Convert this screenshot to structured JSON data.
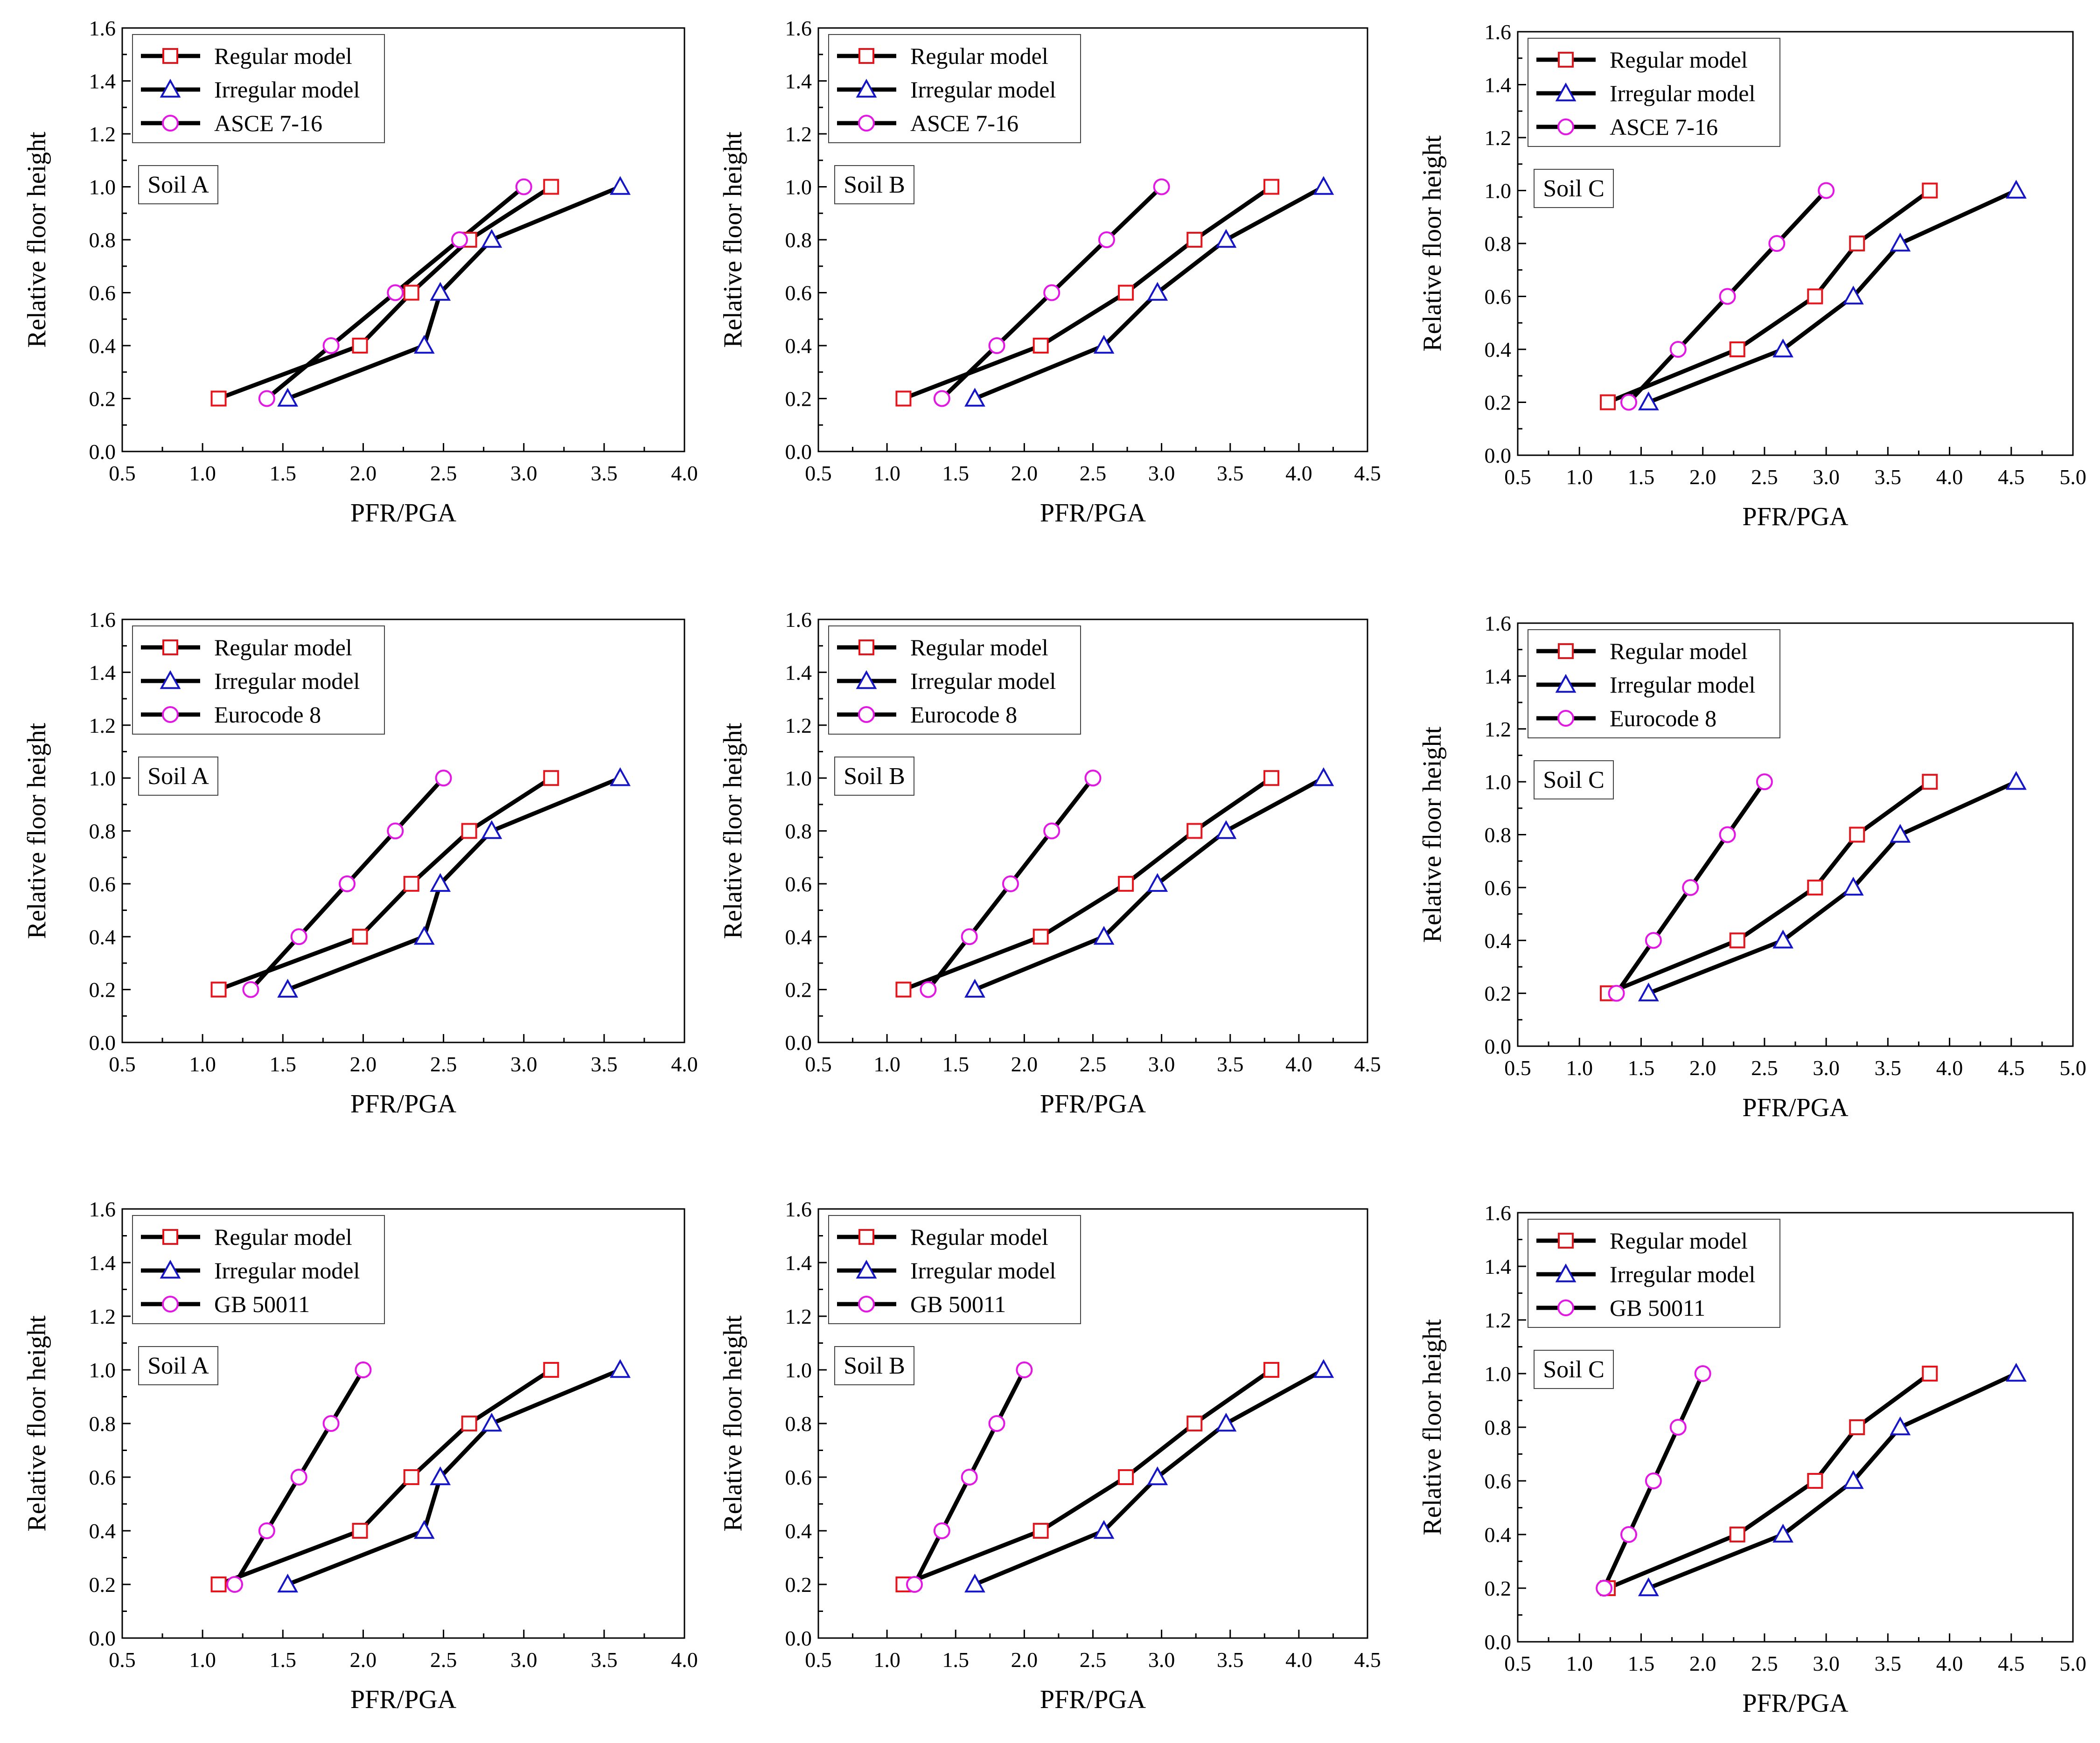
{
  "figure": {
    "series_names": [
      "Regular model",
      "Irregular model"
    ],
    "colors": {
      "regular": "#e8141c",
      "irregular": "#1414c8",
      "code": "#e614e6",
      "line": "#000000"
    },
    "marker_icons": {
      "regular": "square-marker",
      "irregular": "triangle-marker",
      "code": "circle-marker"
    }
  },
  "chart_data": [
    {
      "type": "line",
      "row": 1,
      "col": 1,
      "code": "ASCE 7-16",
      "soil": "Soil A",
      "xlabel": "PFR/PGA",
      "ylabel": "Relative floor height",
      "xlim": [
        0.5,
        4.0
      ],
      "ylim": [
        0.0,
        1.6
      ],
      "xticks": [
        "0.5",
        "1.0",
        "1.5",
        "2.0",
        "2.5",
        "3.0",
        "3.5",
        "4.0"
      ],
      "yticks": [
        "0.0",
        "0.2",
        "0.4",
        "0.6",
        "0.8",
        "1.0",
        "1.2",
        "1.4",
        "1.6"
      ],
      "series": [
        {
          "name": "Regular model",
          "x": [
            1.1,
            1.98,
            2.3,
            2.66,
            3.17
          ],
          "y": [
            0.2,
            0.4,
            0.6,
            0.8,
            1.0
          ]
        },
        {
          "name": "Irregular model",
          "x": [
            1.53,
            2.38,
            2.48,
            2.8,
            3.6
          ],
          "y": [
            0.2,
            0.4,
            0.6,
            0.8,
            1.0
          ]
        },
        {
          "name": "ASCE 7-16",
          "x": [
            1.4,
            1.8,
            2.2,
            2.6,
            3.0
          ],
          "y": [
            0.2,
            0.4,
            0.6,
            0.8,
            1.0
          ]
        }
      ]
    },
    {
      "type": "line",
      "row": 1,
      "col": 2,
      "code": "ASCE 7-16",
      "soil": "Soil B",
      "xlabel": "PFR/PGA",
      "ylabel": "Relative floor height",
      "xlim": [
        0.5,
        4.5
      ],
      "ylim": [
        0.0,
        1.6
      ],
      "xticks": [
        "0.5",
        "1.0",
        "1.5",
        "2.0",
        "2.5",
        "3.0",
        "3.5",
        "4.0",
        "4.5"
      ],
      "yticks": [
        "0.0",
        "0.2",
        "0.4",
        "0.6",
        "0.8",
        "1.0",
        "1.2",
        "1.4",
        "1.6"
      ],
      "series": [
        {
          "name": "Regular model",
          "x": [
            1.12,
            2.12,
            2.74,
            3.24,
            3.8
          ],
          "y": [
            0.2,
            0.4,
            0.6,
            0.8,
            1.0
          ]
        },
        {
          "name": "Irregular model",
          "x": [
            1.64,
            2.58,
            2.97,
            3.47,
            4.18
          ],
          "y": [
            0.2,
            0.4,
            0.6,
            0.8,
            1.0
          ]
        },
        {
          "name": "ASCE 7-16",
          "x": [
            1.4,
            1.8,
            2.2,
            2.6,
            3.0
          ],
          "y": [
            0.2,
            0.4,
            0.6,
            0.8,
            1.0
          ]
        }
      ]
    },
    {
      "type": "line",
      "row": 1,
      "col": 3,
      "code": "ASCE 7-16",
      "soil": "Soil C",
      "xlabel": "PFR/PGA",
      "ylabel": "Relative floor height",
      "xlim": [
        0.5,
        5.0
      ],
      "ylim": [
        0.0,
        1.6
      ],
      "xticks": [
        "0.5",
        "1.0",
        "1.5",
        "2.0",
        "2.5",
        "3.0",
        "3.5",
        "4.0",
        "4.5",
        "5.0"
      ],
      "yticks": [
        "0.0",
        "0.2",
        "0.4",
        "0.6",
        "0.8",
        "1.0",
        "1.2",
        "1.4",
        "1.6"
      ],
      "series": [
        {
          "name": "Regular model",
          "x": [
            1.23,
            2.28,
            2.91,
            3.25,
            3.84
          ],
          "y": [
            0.2,
            0.4,
            0.6,
            0.8,
            1.0
          ]
        },
        {
          "name": "Irregular model",
          "x": [
            1.56,
            2.65,
            3.22,
            3.6,
            4.54
          ],
          "y": [
            0.2,
            0.4,
            0.6,
            0.8,
            1.0
          ]
        },
        {
          "name": "ASCE 7-16",
          "x": [
            1.4,
            1.8,
            2.2,
            2.6,
            3.0
          ],
          "y": [
            0.2,
            0.4,
            0.6,
            0.8,
            1.0
          ]
        }
      ]
    },
    {
      "type": "line",
      "row": 2,
      "col": 1,
      "code": "Eurocode 8",
      "soil": "Soil A",
      "xlabel": "PFR/PGA",
      "ylabel": "Relative floor height",
      "xlim": [
        0.5,
        4.0
      ],
      "ylim": [
        0.0,
        1.6
      ],
      "xticks": [
        "0.5",
        "1.0",
        "1.5",
        "2.0",
        "2.5",
        "3.0",
        "3.5",
        "4.0"
      ],
      "yticks": [
        "0.0",
        "0.2",
        "0.4",
        "0.6",
        "0.8",
        "1.0",
        "1.2",
        "1.4",
        "1.6"
      ],
      "series": [
        {
          "name": "Regular model",
          "x": [
            1.1,
            1.98,
            2.3,
            2.66,
            3.17
          ],
          "y": [
            0.2,
            0.4,
            0.6,
            0.8,
            1.0
          ]
        },
        {
          "name": "Irregular model",
          "x": [
            1.53,
            2.38,
            2.48,
            2.8,
            3.6
          ],
          "y": [
            0.2,
            0.4,
            0.6,
            0.8,
            1.0
          ]
        },
        {
          "name": "Eurocode 8",
          "x": [
            1.3,
            1.6,
            1.9,
            2.2,
            2.5
          ],
          "y": [
            0.2,
            0.4,
            0.6,
            0.8,
            1.0
          ]
        }
      ]
    },
    {
      "type": "line",
      "row": 2,
      "col": 2,
      "code": "Eurocode 8",
      "soil": "Soil B",
      "xlabel": "PFR/PGA",
      "ylabel": "Relative floor height",
      "xlim": [
        0.5,
        4.5
      ],
      "ylim": [
        0.0,
        1.6
      ],
      "xticks": [
        "0.5",
        "1.0",
        "1.5",
        "2.0",
        "2.5",
        "3.0",
        "3.5",
        "4.0",
        "4.5"
      ],
      "yticks": [
        "0.0",
        "0.2",
        "0.4",
        "0.6",
        "0.8",
        "1.0",
        "1.2",
        "1.4",
        "1.6"
      ],
      "series": [
        {
          "name": "Regular model",
          "x": [
            1.12,
            2.12,
            2.74,
            3.24,
            3.8
          ],
          "y": [
            0.2,
            0.4,
            0.6,
            0.8,
            1.0
          ]
        },
        {
          "name": "Irregular model",
          "x": [
            1.64,
            2.58,
            2.97,
            3.47,
            4.18
          ],
          "y": [
            0.2,
            0.4,
            0.6,
            0.8,
            1.0
          ]
        },
        {
          "name": "Eurocode 8",
          "x": [
            1.3,
            1.6,
            1.9,
            2.2,
            2.5
          ],
          "y": [
            0.2,
            0.4,
            0.6,
            0.8,
            1.0
          ]
        }
      ]
    },
    {
      "type": "line",
      "row": 2,
      "col": 3,
      "code": "Eurocode 8",
      "soil": "Soil C",
      "xlabel": "PFR/PGA",
      "ylabel": "Relative floor height",
      "xlim": [
        0.5,
        5.0
      ],
      "ylim": [
        0.0,
        1.6
      ],
      "xticks": [
        "0.5",
        "1.0",
        "1.5",
        "2.0",
        "2.5",
        "3.0",
        "3.5",
        "4.0",
        "4.5",
        "5.0"
      ],
      "yticks": [
        "0.0",
        "0.2",
        "0.4",
        "0.6",
        "0.8",
        "1.0",
        "1.2",
        "1.4",
        "1.6"
      ],
      "series": [
        {
          "name": "Regular model",
          "x": [
            1.23,
            2.28,
            2.91,
            3.25,
            3.84
          ],
          "y": [
            0.2,
            0.4,
            0.6,
            0.8,
            1.0
          ]
        },
        {
          "name": "Irregular model",
          "x": [
            1.56,
            2.65,
            3.22,
            3.6,
            4.54
          ],
          "y": [
            0.2,
            0.4,
            0.6,
            0.8,
            1.0
          ]
        },
        {
          "name": "Eurocode 8",
          "x": [
            1.3,
            1.6,
            1.9,
            2.2,
            2.5
          ],
          "y": [
            0.2,
            0.4,
            0.6,
            0.8,
            1.0
          ]
        }
      ]
    },
    {
      "type": "line",
      "row": 3,
      "col": 1,
      "code": "GB 50011",
      "soil": "Soil A",
      "xlabel": "PFR/PGA",
      "ylabel": "Relative floor height",
      "xlim": [
        0.5,
        4.0
      ],
      "ylim": [
        0.0,
        1.6
      ],
      "xticks": [
        "0.5",
        "1.0",
        "1.5",
        "2.0",
        "2.5",
        "3.0",
        "3.5",
        "4.0"
      ],
      "yticks": [
        "0.0",
        "0.2",
        "0.4",
        "0.6",
        "0.8",
        "1.0",
        "1.2",
        "1.4",
        "1.6"
      ],
      "series": [
        {
          "name": "Regular model",
          "x": [
            1.1,
            1.98,
            2.3,
            2.66,
            3.17
          ],
          "y": [
            0.2,
            0.4,
            0.6,
            0.8,
            1.0
          ]
        },
        {
          "name": "Irregular model",
          "x": [
            1.53,
            2.38,
            2.48,
            2.8,
            3.6
          ],
          "y": [
            0.2,
            0.4,
            0.6,
            0.8,
            1.0
          ]
        },
        {
          "name": "GB 50011",
          "x": [
            1.2,
            1.4,
            1.6,
            1.8,
            2.0
          ],
          "y": [
            0.2,
            0.4,
            0.6,
            0.8,
            1.0
          ]
        }
      ]
    },
    {
      "type": "line",
      "row": 3,
      "col": 2,
      "code": "GB 50011",
      "soil": "Soil B",
      "xlabel": "PFR/PGA",
      "ylabel": "Relative floor height",
      "xlim": [
        0.5,
        4.5
      ],
      "ylim": [
        0.0,
        1.6
      ],
      "xticks": [
        "0.5",
        "1.0",
        "1.5",
        "2.0",
        "2.5",
        "3.0",
        "3.5",
        "4.0",
        "4.5"
      ],
      "yticks": [
        "0.0",
        "0.2",
        "0.4",
        "0.6",
        "0.8",
        "1.0",
        "1.2",
        "1.4",
        "1.6"
      ],
      "series": [
        {
          "name": "Regular model",
          "x": [
            1.12,
            2.12,
            2.74,
            3.24,
            3.8
          ],
          "y": [
            0.2,
            0.4,
            0.6,
            0.8,
            1.0
          ]
        },
        {
          "name": "Irregular model",
          "x": [
            1.64,
            2.58,
            2.97,
            3.47,
            4.18
          ],
          "y": [
            0.2,
            0.4,
            0.6,
            0.8,
            1.0
          ]
        },
        {
          "name": "GB 50011",
          "x": [
            1.2,
            1.4,
            1.6,
            1.8,
            2.0
          ],
          "y": [
            0.2,
            0.4,
            0.6,
            0.8,
            1.0
          ]
        }
      ]
    },
    {
      "type": "line",
      "row": 3,
      "col": 3,
      "code": "GB 50011",
      "soil": "Soil C",
      "xlabel": "PFR/PGA",
      "ylabel": "Relative floor height",
      "xlim": [
        0.5,
        5.0
      ],
      "ylim": [
        0.0,
        1.6
      ],
      "xticks": [
        "0.5",
        "1.0",
        "1.5",
        "2.0",
        "2.5",
        "3.0",
        "3.5",
        "4.0",
        "4.5",
        "5.0"
      ],
      "yticks": [
        "0.0",
        "0.2",
        "0.4",
        "0.6",
        "0.8",
        "1.0",
        "1.2",
        "1.4",
        "1.6"
      ],
      "series": [
        {
          "name": "Regular model",
          "x": [
            1.23,
            2.28,
            2.91,
            3.25,
            3.84
          ],
          "y": [
            0.2,
            0.4,
            0.6,
            0.8,
            1.0
          ]
        },
        {
          "name": "Irregular model",
          "x": [
            1.56,
            2.65,
            3.22,
            3.6,
            4.54
          ],
          "y": [
            0.2,
            0.4,
            0.6,
            0.8,
            1.0
          ]
        },
        {
          "name": "GB 50011",
          "x": [
            1.2,
            1.4,
            1.6,
            1.8,
            2.0
          ],
          "y": [
            0.2,
            0.4,
            0.6,
            0.8,
            1.0
          ]
        }
      ]
    }
  ]
}
